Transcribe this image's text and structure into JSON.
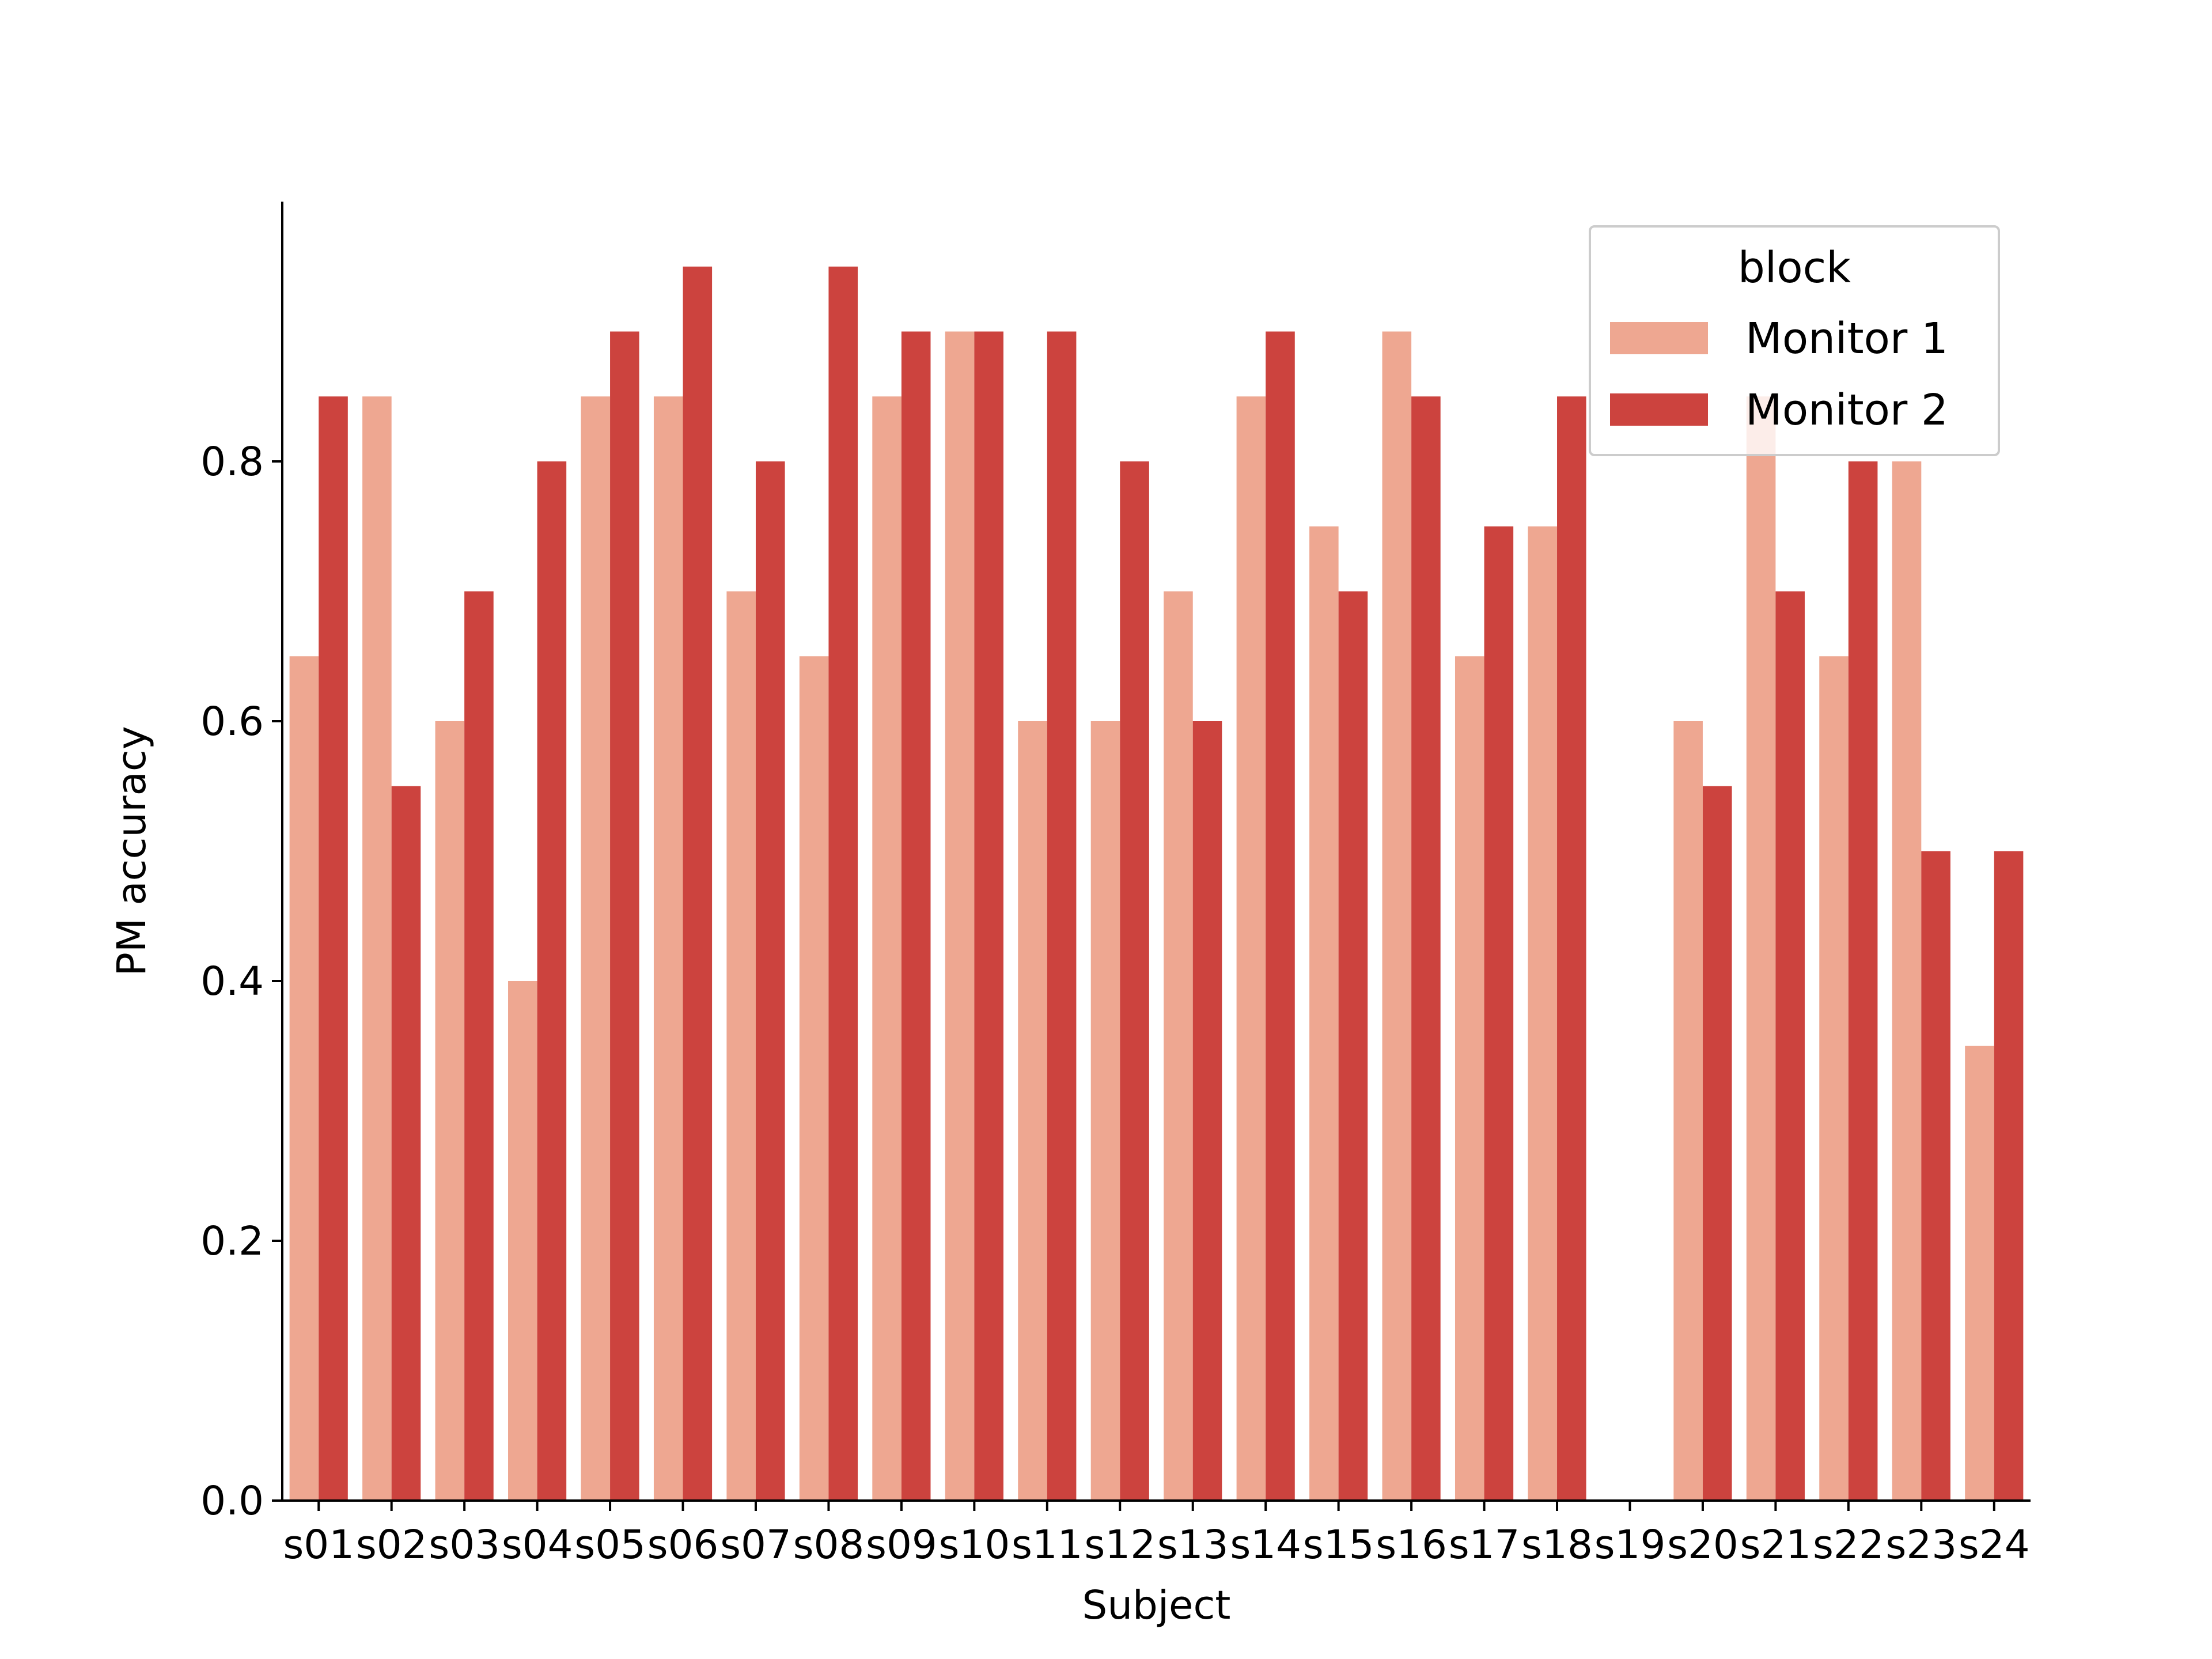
{
  "chart_data": {
    "type": "bar",
    "xlabel": "Subject",
    "ylabel": "PM accuracy",
    "ylim": [
      0,
      1.0
    ],
    "yticks": [
      0.0,
      0.2,
      0.4,
      0.6,
      0.8
    ],
    "ytick_labels": [
      "0.0",
      "0.2",
      "0.4",
      "0.6",
      "0.8"
    ],
    "categories": [
      "s01",
      "s02",
      "s03",
      "s04",
      "s05",
      "s06",
      "s07",
      "s08",
      "s09",
      "s10",
      "s11",
      "s12",
      "s13",
      "s14",
      "s15",
      "s16",
      "s17",
      "s18",
      "s19",
      "s20",
      "s21",
      "s22",
      "s23",
      "s24"
    ],
    "legend": {
      "title": "block",
      "position": "top-right"
    },
    "grid": false,
    "series": [
      {
        "name": "Monitor 1",
        "color": "#eea791",
        "values": [
          0.65,
          0.85,
          0.6,
          0.4,
          0.85,
          0.85,
          0.7,
          0.65,
          0.85,
          0.9,
          0.6,
          0.6,
          0.7,
          0.85,
          0.75,
          0.9,
          0.65,
          0.75,
          null,
          0.6,
          0.85,
          0.65,
          0.8,
          0.35
        ]
      },
      {
        "name": "Monitor 2",
        "color": "#cc433e",
        "values": [
          0.85,
          0.55,
          0.7,
          0.8,
          0.9,
          0.95,
          0.8,
          0.95,
          0.9,
          0.9,
          0.9,
          0.8,
          0.6,
          0.9,
          0.7,
          0.85,
          0.75,
          0.85,
          null,
          0.55,
          0.7,
          0.8,
          0.5,
          0.5
        ]
      }
    ]
  }
}
